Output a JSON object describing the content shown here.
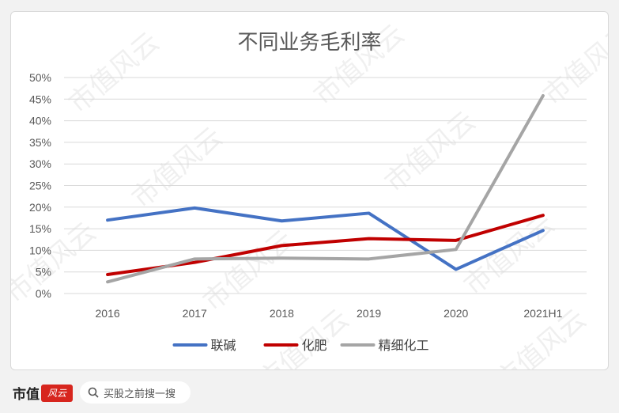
{
  "chart_data": {
    "type": "line",
    "title": "不同业务毛利率",
    "categories": [
      "2016",
      "2017",
      "2018",
      "2019",
      "2020",
      "2021H1"
    ],
    "series": [
      {
        "name": "联碱",
        "color": "#4472c4",
        "values": [
          17.0,
          19.8,
          16.8,
          18.6,
          5.6,
          14.6
        ]
      },
      {
        "name": "化肥",
        "color": "#c00000",
        "values": [
          4.4,
          7.2,
          11.1,
          12.7,
          12.3,
          18.1
        ]
      },
      {
        "name": "精细化工",
        "color": "#a5a5a5",
        "values": [
          2.7,
          8.0,
          8.2,
          8.0,
          10.2,
          45.8
        ]
      }
    ],
    "yticks": [
      "0%",
      "5%",
      "10%",
      "15%",
      "20%",
      "25%",
      "30%",
      "35%",
      "40%",
      "45%",
      "50%"
    ],
    "ylim": [
      0,
      50
    ],
    "grid": true,
    "legend_position": "bottom"
  },
  "watermark_text": "市值风云",
  "footer": {
    "brand": "市值",
    "brand_logo": "风云",
    "search_placeholder": "买股之前搜一搜",
    "search_icon": "search-icon"
  }
}
